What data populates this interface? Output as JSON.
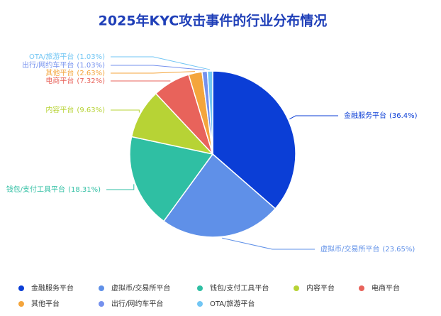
{
  "chart_data": {
    "type": "pie",
    "title": "2025年KYC攻击事件的行业分布情况",
    "categories": [
      "金融服务平台",
      "虚拟币/交易所平台",
      "钱包/支付工具平台",
      "内容平台",
      "电商平台",
      "其他平台",
      "出行/网约车平台",
      "OTA/旅游平台"
    ],
    "values": [
      36.4,
      23.65,
      18.31,
      9.63,
      7.32,
      2.63,
      1.03,
      1.03
    ],
    "value_labels": [
      "(36.4%)",
      "(23.65%)",
      "(18.31%)",
      "(9.63%)",
      "(7.32%)",
      "(2.63%)",
      "(1.03%)",
      "(1.03%)"
    ],
    "colors": [
      "#0b3ed6",
      "#5f90e8",
      "#2fbfa3",
      "#b7d335",
      "#e8635b",
      "#f4a53c",
      "#7591ee",
      "#72c6f4"
    ]
  }
}
